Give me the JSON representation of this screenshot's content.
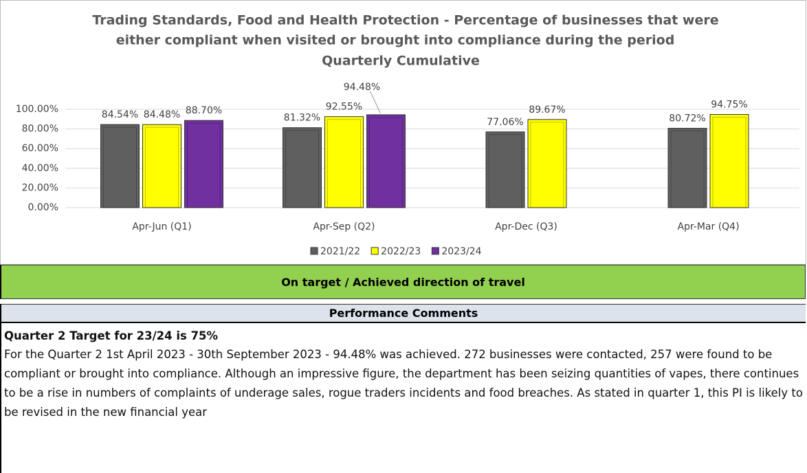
{
  "chart_data": {
    "type": "bar",
    "title": "Trading Standards, Food and Health Protection  - Percentage of businesses that were",
    "title_line2": "either compliant when visited or brought into compliance during the period",
    "subtitle": "Quarterly Cumulative",
    "categories": [
      "Apr-Jun  (Q1)",
      "Apr-Sep  (Q2)",
      "Apr-Dec  (Q3)",
      "Apr-Mar  (Q4)"
    ],
    "series": [
      {
        "name": "2021/22",
        "color": "#5f5f5f",
        "values": [
          84.54,
          81.32,
          77.06,
          80.72
        ],
        "value_labels": [
          "84.54%",
          "81.32%",
          "77.06%",
          "80.72%"
        ]
      },
      {
        "name": "2022/23",
        "color": "#ffff00",
        "values": [
          84.48,
          92.55,
          89.67,
          94.75
        ],
        "value_labels": [
          "84.48%",
          "92.55%",
          "89.67%",
          "94.75%"
        ]
      },
      {
        "name": "2023/24",
        "color": "#7030a0",
        "values": [
          88.7,
          94.48,
          null,
          null
        ],
        "value_labels": [
          "88.70%",
          "94.48%",
          null,
          null
        ]
      }
    ],
    "ylim": [
      0,
      100
    ],
    "yticks": [
      {
        "value": 0,
        "label": "0.00%"
      },
      {
        "value": 20,
        "label": "20.00%"
      },
      {
        "value": 40,
        "label": "40.00%"
      },
      {
        "value": 60,
        "label": "60.00%"
      },
      {
        "value": 80,
        "label": "80.00%"
      },
      {
        "value": 100,
        "label": "100.00%"
      }
    ],
    "grid": true,
    "legend": "bottom"
  },
  "status": "On target / Achieved direction of travel",
  "comments": {
    "header": "Performance Comments",
    "heading": "Quarter 2 Target for 23/24 is 75%",
    "text": "For the Quarter 2 1st April 2023 - 30th September 2023 - 94.48% was achieved. 272 businesses were contacted, 257 were found to be compliant or brought into compliance. Although an impressive figure, the department has been seizing quantities of vapes, there continues to be a rise in numbers of complaints of underage sales, rogue traders incidents and food breaches. As stated in quarter 1, this PI is likely to be revised in the new financial year"
  }
}
